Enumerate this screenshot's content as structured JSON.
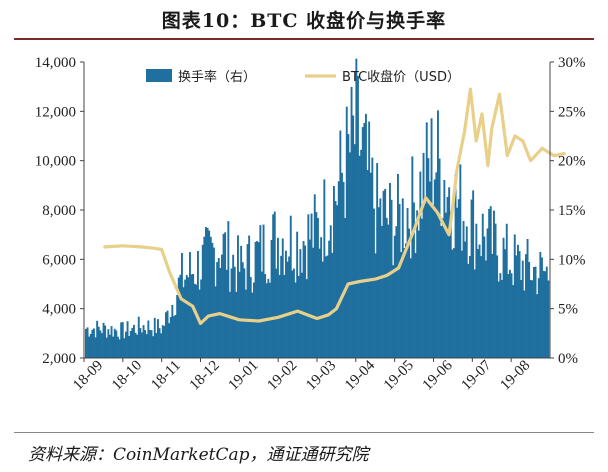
{
  "figure": {
    "title": "图表10：BTC 收盘价与换手率",
    "source": "资料来源：CoinMarketCap，通证通研究院"
  },
  "chart_data": {
    "type": "bar+line",
    "x_tick_labels": [
      "18-09",
      "18-10",
      "18-11",
      "18-12",
      "19-01",
      "19-02",
      "19-03",
      "19-04",
      "19-05",
      "19-06",
      "19-07",
      "19-08"
    ],
    "left_axis": {
      "ticks": [
        "2,000",
        "4,000",
        "6,000",
        "8,000",
        "10,000",
        "12,000",
        "14,000"
      ],
      "ylim": [
        2000,
        14000
      ]
    },
    "right_axis": {
      "ticks": [
        "0%",
        "5%",
        "10%",
        "15%",
        "20%",
        "25%",
        "30%"
      ],
      "ylim": [
        0,
        30
      ]
    },
    "legend": {
      "placement": "top",
      "items": [
        "换手率（右）",
        "BTC收盘价（USD）"
      ]
    },
    "colors": {
      "bars": "#1f6f9f",
      "line": "#e8d08a",
      "title_rule": "#7a2a2a"
    },
    "series": [
      {
        "name": "换手率（右）",
        "axis": "right",
        "kind": "bar",
        "unit": "%",
        "x": [
          0,
          0.5,
          1,
          1.5,
          2,
          2.5,
          3,
          3.5,
          4,
          4.5,
          5,
          5.5,
          6,
          6.5,
          7,
          7.5,
          8,
          8.5,
          9,
          9.5,
          10,
          10.5,
          11,
          11.5,
          11.9
        ],
        "values": [
          3.5,
          3.2,
          3.8,
          3.6,
          9.5,
          11.2,
          13.5,
          10.5,
          12.5,
          14.5,
          13.8,
          15.2,
          20,
          27,
          17.5,
          16,
          18.5,
          24,
          19,
          16,
          13.5,
          11.5,
          10.5,
          10,
          9
        ]
      },
      {
        "name": "BTC收盘价（USD）",
        "axis": "left",
        "kind": "line",
        "unit": "USD",
        "x": [
          0,
          0.5,
          1,
          1.3,
          1.5,
          1.7,
          2,
          2.3,
          2.5,
          2.7,
          3,
          3.5,
          4,
          4.5,
          5,
          5.5,
          5.8,
          6,
          6.3,
          6.6,
          7,
          7.3,
          7.6,
          8,
          8.3,
          8.6,
          8.9,
          9,
          9.1,
          9.3,
          9.45,
          9.6,
          9.75,
          9.9,
          10,
          10.2,
          10.4,
          10.6,
          10.8,
          11,
          11.3,
          11.6,
          11.9
        ],
        "values": [
          6500,
          6550,
          6500,
          6450,
          6400,
          5500,
          4400,
          4100,
          3400,
          3700,
          3800,
          3550,
          3500,
          3650,
          3900,
          3600,
          3750,
          4000,
          5000,
          5100,
          5200,
          5350,
          5650,
          7200,
          8500,
          7900,
          7000,
          8200,
          9600,
          11200,
          12900,
          10800,
          11900,
          9800,
          11300,
          12700,
          10200,
          11000,
          10800,
          10000,
          10500,
          10200,
          10300
        ]
      }
    ]
  }
}
